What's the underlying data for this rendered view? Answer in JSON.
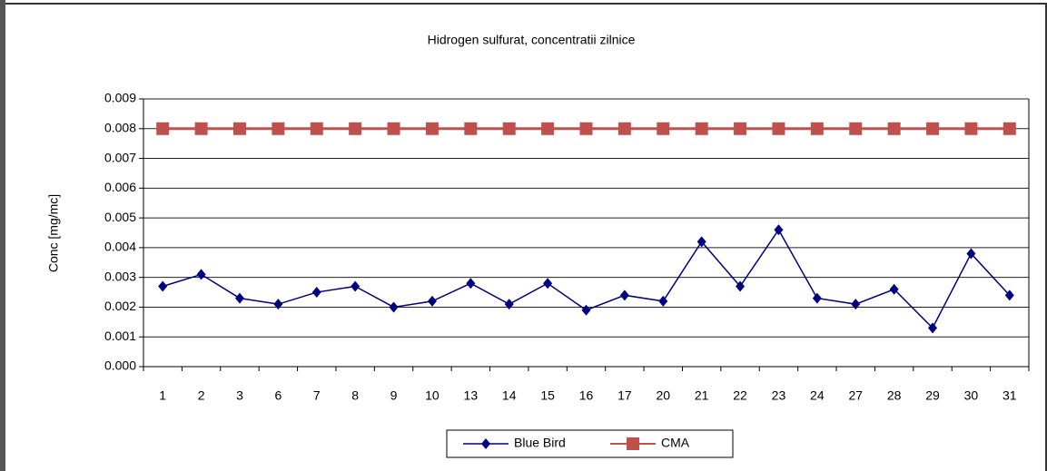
{
  "chart_data": {
    "type": "line",
    "title": "Hidrogen sulfurat, concentratii zilnice",
    "y_label": "Conc [mg/mc]",
    "categories": [
      "1",
      "2",
      "3",
      "6",
      "7",
      "8",
      "9",
      "10",
      "13",
      "14",
      "15",
      "16",
      "17",
      "20",
      "21",
      "22",
      "23",
      "24",
      "27",
      "28",
      "29",
      "30",
      "31"
    ],
    "series": [
      {
        "name": "Blue Bird",
        "color": "#000080",
        "marker": "diamond",
        "values": [
          0.0027,
          0.0031,
          0.0023,
          0.0021,
          0.0025,
          0.0027,
          0.002,
          0.0022,
          0.0028,
          0.0021,
          0.0028,
          0.0019,
          0.0024,
          0.0022,
          0.0042,
          0.0027,
          0.0046,
          0.0023,
          0.0021,
          0.0026,
          0.0013,
          0.0038,
          0.0024
        ]
      },
      {
        "name": "CMA",
        "color": "#c0504d",
        "marker": "square",
        "values": [
          0.008,
          0.008,
          0.008,
          0.008,
          0.008,
          0.008,
          0.008,
          0.008,
          0.008,
          0.008,
          0.008,
          0.008,
          0.008,
          0.008,
          0.008,
          0.008,
          0.008,
          0.008,
          0.008,
          0.008,
          0.008,
          0.008,
          0.008
        ]
      }
    ],
    "ylim": [
      0,
      0.009
    ],
    "yticks": [
      {
        "value": 0,
        "label": "0.000"
      },
      0.001,
      0.002,
      0.003,
      0.004,
      0.005,
      0.006,
      0.007,
      0.008,
      0.009
    ],
    "grid": true,
    "legend": "bottom"
  }
}
